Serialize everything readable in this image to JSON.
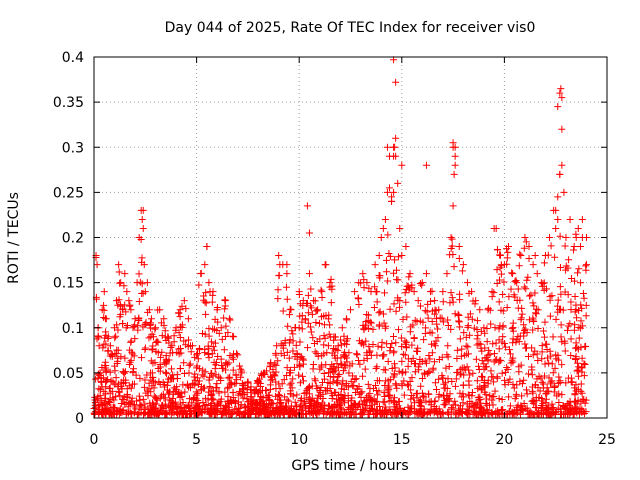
{
  "chart_data": {
    "type": "scatter",
    "title": "Day 044 of 2025, Rate Of TEC Index for receiver vis0",
    "xlabel": "GPS time / hours",
    "ylabel": "ROTI / TECUs",
    "xlim": [
      0,
      25
    ],
    "ylim": [
      0,
      0.4
    ],
    "x_ticks": [
      0,
      5,
      10,
      15,
      20,
      25
    ],
    "y_ticks": [
      0,
      0.05,
      0.1,
      0.15,
      0.2,
      0.25,
      0.3,
      0.35,
      0.4
    ],
    "x_tick_labels": [
      "0",
      "5",
      "10",
      "15",
      "20",
      "25"
    ],
    "y_tick_labels": [
      "0",
      "0.05",
      "0.1",
      "0.15",
      "0.2",
      "0.25",
      "0.3",
      "0.35",
      "0.4"
    ],
    "grid": true,
    "marker": "+",
    "color": "#ff0000",
    "series": [
      {
        "x": [
          0.05,
          0.1,
          0.15,
          0.2,
          0.25,
          0.3,
          0.4,
          0.5,
          0.6,
          0.7,
          0.8,
          0.9,
          1.0,
          1.1,
          1.2,
          1.3,
          1.4,
          1.5,
          1.6,
          1.7,
          1.8,
          1.9,
          2.0,
          2.1,
          2.2,
          2.3,
          2.35,
          2.4,
          2.45,
          2.5,
          2.6,
          2.7,
          2.8,
          2.9,
          3.0,
          3.2,
          3.4,
          3.6,
          3.8,
          4.0,
          4.2,
          4.4,
          4.6,
          4.8,
          5.0,
          5.2,
          5.4,
          5.5,
          5.6,
          5.8,
          6.0,
          6.2,
          6.4,
          6.6,
          6.8,
          7.0,
          7.2,
          7.5,
          7.8,
          8.0,
          8.3,
          8.6,
          8.9,
          9.0,
          9.2,
          9.4,
          9.6,
          9.8,
          10.0,
          10.2,
          10.3,
          10.5,
          10.7,
          10.9,
          11.1,
          11.3,
          11.5,
          11.7,
          11.9,
          12.1,
          12.3,
          12.5,
          12.7,
          12.9,
          13.1,
          13.3,
          13.5,
          13.7,
          13.9,
          14.0,
          14.1,
          14.2,
          14.3,
          14.4,
          14.5,
          14.6,
          14.7,
          14.8,
          14.9,
          15.0,
          15.2,
          15.4,
          15.6,
          15.8,
          16.0,
          16.2,
          16.4,
          16.6,
          16.8,
          17.0,
          17.2,
          17.4,
          17.5,
          17.6,
          17.8,
          18.0,
          18.2,
          18.4,
          18.6,
          18.8,
          19.0,
          19.2,
          19.4,
          19.6,
          19.8,
          20.0,
          20.2,
          20.4,
          20.6,
          20.8,
          21.0,
          21.2,
          21.4,
          21.6,
          21.8,
          22.0,
          22.2,
          22.4,
          22.5,
          22.6,
          22.7,
          22.8,
          22.9,
          23.0,
          23.2,
          23.4,
          23.6,
          23.8,
          24.0,
          0.2,
          2.4,
          5.5,
          9.4,
          10.4,
          10.5,
          14.6,
          14.7,
          14.7,
          14.65,
          14.5,
          14.6,
          16.2,
          17.5,
          17.6,
          17.55,
          17.5,
          19.5,
          22.6,
          22.7,
          22.75,
          22.8,
          22.8,
          22.7,
          22.6,
          22.5,
          23.5,
          23.8,
          24.0,
          10.0,
          14.3,
          14.4,
          14.5,
          14.6,
          15.0,
          17.6,
          20.2,
          21.5
        ],
        "y": [
          0.02,
          0.18,
          0.17,
          0.1,
          0.08,
          0.05,
          0.12,
          0.14,
          0.11,
          0.09,
          0.08,
          0.07,
          0.1,
          0.13,
          0.17,
          0.15,
          0.12,
          0.16,
          0.14,
          0.13,
          0.12,
          0.1,
          0.11,
          0.15,
          0.2,
          0.23,
          0.22,
          0.21,
          0.17,
          0.14,
          0.15,
          0.12,
          0.11,
          0.09,
          0.1,
          0.12,
          0.11,
          0.09,
          0.08,
          0.1,
          0.12,
          0.13,
          0.11,
          0.08,
          0.07,
          0.16,
          0.17,
          0.19,
          0.15,
          0.14,
          0.12,
          0.1,
          0.13,
          0.11,
          0.09,
          0.07,
          0.05,
          0.04,
          0.03,
          0.04,
          0.05,
          0.06,
          0.08,
          0.18,
          0.17,
          0.16,
          0.12,
          0.1,
          0.14,
          0.13,
          0.11,
          0.16,
          0.13,
          0.12,
          0.14,
          0.17,
          0.15,
          0.09,
          0.08,
          0.1,
          0.11,
          0.12,
          0.14,
          0.15,
          0.16,
          0.15,
          0.14,
          0.17,
          0.18,
          0.2,
          0.21,
          0.22,
          0.25,
          0.29,
          0.24,
          0.3,
          0.31,
          0.26,
          0.21,
          0.18,
          0.19,
          0.16,
          0.14,
          0.13,
          0.15,
          0.16,
          0.14,
          0.13,
          0.12,
          0.14,
          0.16,
          0.2,
          0.3,
          0.28,
          0.19,
          0.17,
          0.15,
          0.14,
          0.13,
          0.12,
          0.1,
          0.12,
          0.14,
          0.21,
          0.18,
          0.17,
          0.19,
          0.16,
          0.15,
          0.18,
          0.2,
          0.19,
          0.17,
          0.16,
          0.15,
          0.18,
          0.2,
          0.23,
          0.21,
          0.22,
          0.27,
          0.28,
          0.25,
          0.2,
          0.22,
          0.19,
          0.21,
          0.2,
          0.17,
          0.1,
          0.23,
          0.19,
          0.17,
          0.235,
          0.205,
          0.397,
          0.372,
          0.29,
          0.3,
          0.245,
          0.25,
          0.28,
          0.305,
          0.29,
          0.27,
          0.235,
          0.21,
          0.345,
          0.36,
          0.365,
          0.355,
          0.32,
          0.27,
          0.245,
          0.23,
          0.2,
          0.22,
          0.2,
          0.1,
          0.3,
          0.255,
          0.24,
          0.29,
          0.28,
          0.3,
          0.19,
          0.18
        ]
      }
    ]
  }
}
